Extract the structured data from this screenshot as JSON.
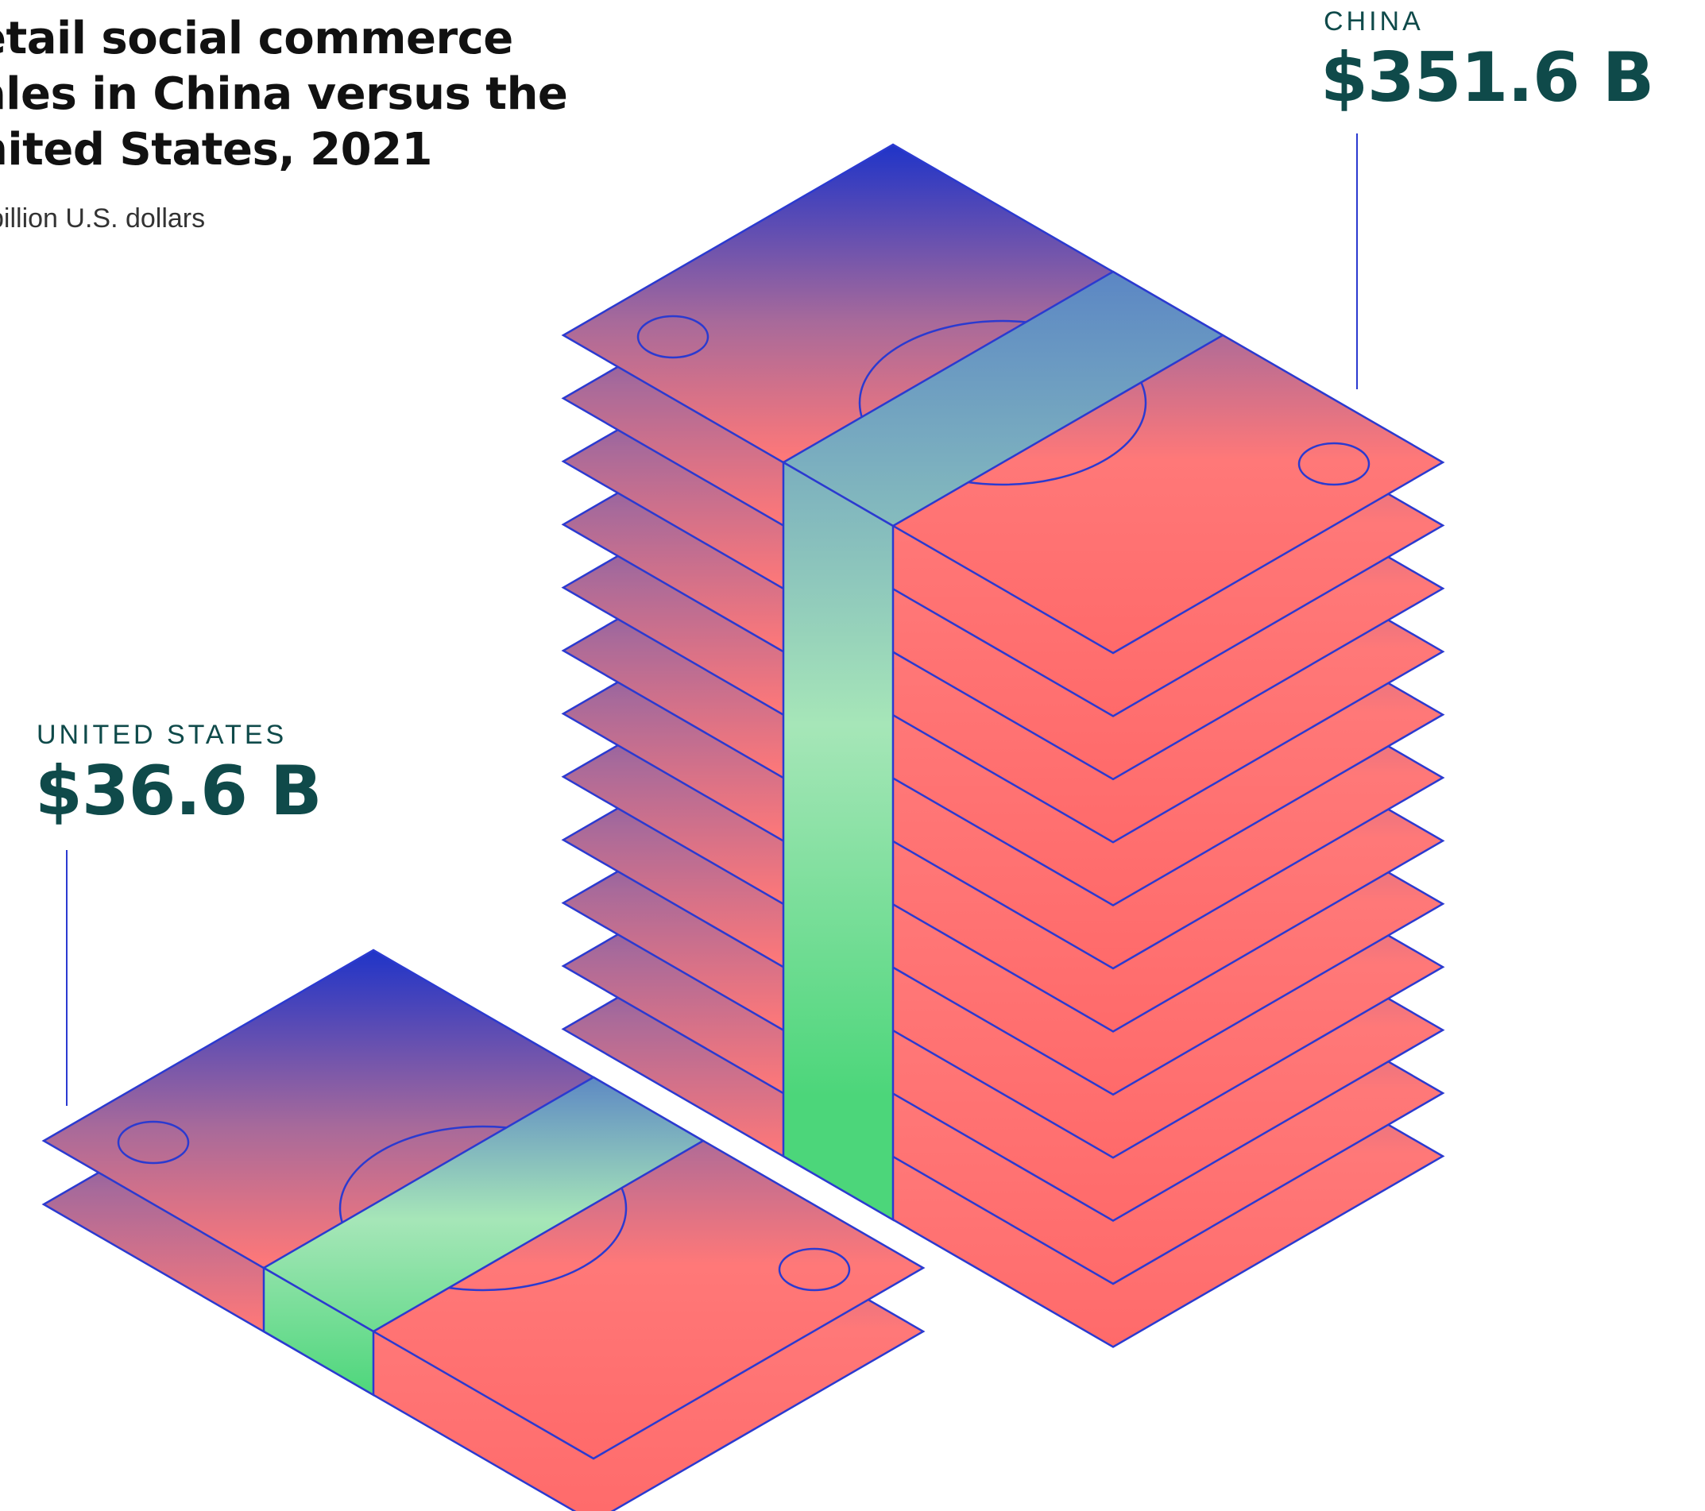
{
  "chart": {
    "title_lines": [
      "etail social commerce",
      "ales in China versus the",
      "nited States, 2021"
    ],
    "subtitle": "billion U.S. dollars"
  },
  "colors": {
    "outline": "#2b3ad0",
    "bill_top": "#1f34c8",
    "bill_mid": "#a86a9a",
    "bill_bottom": "#ff6a6a",
    "band_top": "#5b86c4",
    "band_mid": "#a6e6b8",
    "band_bottom": "#4cd67a",
    "label_text": "#0f4a4a"
  },
  "chart_data": {
    "type": "pictogram",
    "title": "etail social commerce ales in China versus the nited States, 2021",
    "unit": "billion U.S. dollars",
    "categories": [
      "China",
      "United States"
    ],
    "values": [
      351.6,
      36.6
    ],
    "labels": [
      {
        "country": "CHINA",
        "amount": "$351.6 B",
        "bills": 12
      },
      {
        "country": "UNITED STATES",
        "amount": "$36.6 B",
        "bills": 2
      }
    ]
  }
}
